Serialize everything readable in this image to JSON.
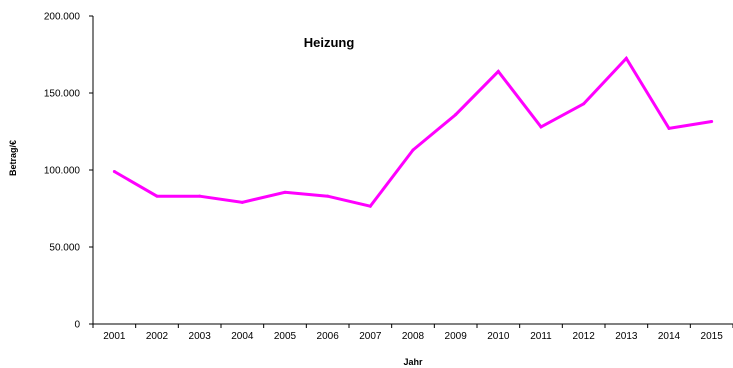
{
  "chart_data": {
    "type": "line",
    "title": "Heizung",
    "xlabel": "Jahr",
    "ylabel": "Betrag/€",
    "categories": [
      "2001",
      "2002",
      "2003",
      "2004",
      "2005",
      "2006",
      "2007",
      "2008",
      "2009",
      "2010",
      "2011",
      "2012",
      "2013",
      "2014",
      "2015"
    ],
    "yticks": [
      "0",
      "50.000",
      "100.000",
      "150.000",
      "200.000"
    ],
    "ylim": [
      0,
      200000
    ],
    "grid": false,
    "legend": "none",
    "series": [
      {
        "color": "#ff00ff",
        "values": [
          99000,
          83000,
          83000,
          79000,
          85500,
          83000,
          76500,
          113000,
          136000,
          164000,
          128000,
          143000,
          172500,
          127000,
          131500
        ]
      }
    ]
  }
}
